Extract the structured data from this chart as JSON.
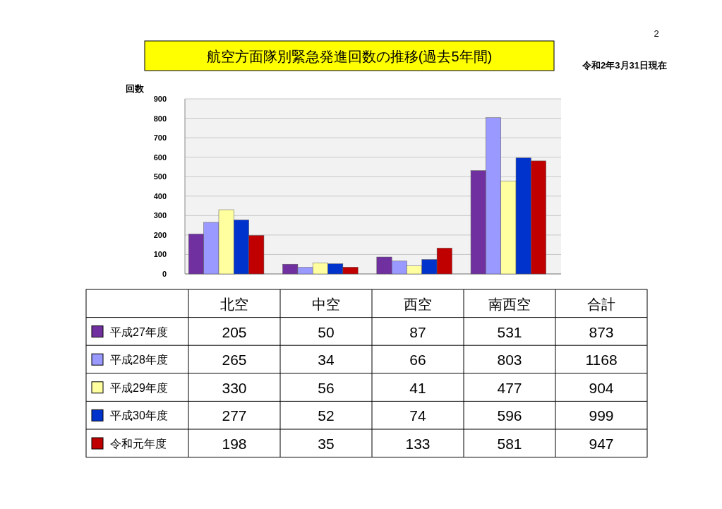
{
  "chart_data": {
    "type": "bar",
    "title": "航空方面隊別緊急発進回数の推移(過去5年間)",
    "ylabel": "回数",
    "categories": [
      "北空",
      "中空",
      "西空",
      "南西空"
    ],
    "series": [
      {
        "name": "平成27年度",
        "color": "#7030a0",
        "values": [
          205,
          50,
          87,
          531
        ]
      },
      {
        "name": "平成28年度",
        "color": "#9999ff",
        "values": [
          265,
          34,
          66,
          803
        ]
      },
      {
        "name": "平成29年度",
        "color": "#ffffa0",
        "values": [
          330,
          56,
          41,
          477
        ]
      },
      {
        "name": "平成30年度",
        "color": "#0033cc",
        "values": [
          277,
          52,
          74,
          596
        ]
      },
      {
        "name": "令和元年度",
        "color": "#c00000",
        "values": [
          198,
          35,
          133,
          581
        ]
      }
    ],
    "ylim": [
      0,
      900
    ],
    "yticks": [
      0,
      100,
      200,
      300,
      400,
      500,
      600,
      700,
      800,
      900
    ],
    "grid": "y",
    "legend": "bottom left",
    "data_labels": true,
    "annotations": [
      "2",
      "令和2年3月31日現在",
      "合計",
      "873",
      "1168",
      "904",
      "999",
      "947"
    ]
  }
}
